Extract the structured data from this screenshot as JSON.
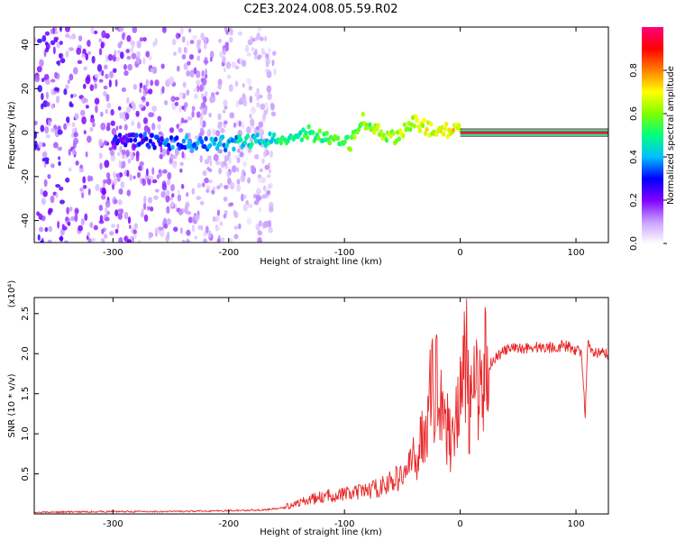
{
  "figure": {
    "title": "C2E3.2024.008.05.59.R02"
  },
  "chart_data": [
    {
      "type": "heatmap",
      "xlabel": "Height of straight line (km)",
      "ylabel": "Frequency (Hz)",
      "xlim": [
        -368,
        128
      ],
      "ylim": [
        -50,
        48
      ],
      "xticks": [
        -300,
        -200,
        -100,
        0,
        100
      ],
      "yticks": [
        -40,
        -20,
        0,
        20,
        40
      ],
      "colorbar": {
        "label": "Normalized spectral amplitude",
        "range": [
          0,
          1
        ],
        "ticks": [
          "0.0",
          "0.2",
          "0.4",
          "0.6",
          "0.8"
        ],
        "tick_values": [
          0.0,
          0.2,
          0.4,
          0.6,
          0.8
        ],
        "colors": [
          "#ffffff",
          "#c8a0ff",
          "#8000ff",
          "#0000ff",
          "#00c0ff",
          "#00ff80",
          "#80ff00",
          "#ffff00",
          "#ff8000",
          "#ff0000",
          "#ff0080"
        ]
      },
      "features": {
        "noise_band": {
          "x": [
            -368,
            -160
          ],
          "y": [
            -50,
            48
          ],
          "amplitude": 0.15
        },
        "signal_trace": [
          {
            "x": -300,
            "y": -2
          },
          {
            "x": -250,
            "y": -5
          },
          {
            "x": -200,
            "y": -5
          },
          {
            "x": -160,
            "y": -3
          },
          {
            "x": -130,
            "y": 0
          },
          {
            "x": -110,
            "y": -4
          },
          {
            "x": -95,
            "y": -5
          },
          {
            "x": -85,
            "y": 6
          },
          {
            "x": -70,
            "y": 0
          },
          {
            "x": -55,
            "y": -3
          },
          {
            "x": -40,
            "y": 5
          },
          {
            "x": -25,
            "y": 1
          },
          {
            "x": 0,
            "y": 1
          },
          {
            "x": 50,
            "y": 0
          },
          {
            "x": 100,
            "y": 0
          },
          {
            "x": 128,
            "y": 0
          }
        ],
        "steady_line": {
          "x": [
            0,
            128
          ],
          "y": 0,
          "amplitude": 0.95
        }
      }
    },
    {
      "type": "line",
      "xlabel": "Height of straight line (km)",
      "ylabel": "SNR (10 * v/v)",
      "y_multiplier": "(x10⁴)",
      "xlim": [
        -368,
        128
      ],
      "ylim": [
        0,
        2.7
      ],
      "xticks": [
        -300,
        -200,
        -100,
        0,
        100
      ],
      "yticks": [
        0.5,
        1.0,
        1.5,
        2.0,
        2.5
      ],
      "ytick_labels": [
        "0.5",
        "1.0",
        "1.5",
        "2.0",
        "2.5"
      ],
      "series": [
        {
          "color": "#e8282a",
          "x": [
            -368,
            -300,
            -250,
            -200,
            -170,
            -150,
            -130,
            -110,
            -90,
            -70,
            -50,
            -40,
            -32,
            -25,
            -18,
            -12,
            -8,
            -4,
            0,
            5,
            8,
            10,
            15,
            20,
            25,
            30,
            40,
            60,
            80,
            90,
            100,
            105,
            108,
            110,
            115,
            128
          ],
          "y": [
            0.02,
            0.03,
            0.03,
            0.04,
            0.05,
            0.08,
            0.15,
            0.2,
            0.22,
            0.28,
            0.4,
            0.6,
            1.0,
            1.5,
            1.7,
            1.1,
            0.9,
            1.3,
            1.4,
            2.0,
            1.2,
            1.4,
            1.6,
            1.8,
            1.85,
            1.95,
            2.05,
            2.08,
            2.08,
            2.1,
            2.05,
            2.0,
            1.2,
            2.1,
            2.0,
            2.0
          ]
        }
      ]
    }
  ]
}
